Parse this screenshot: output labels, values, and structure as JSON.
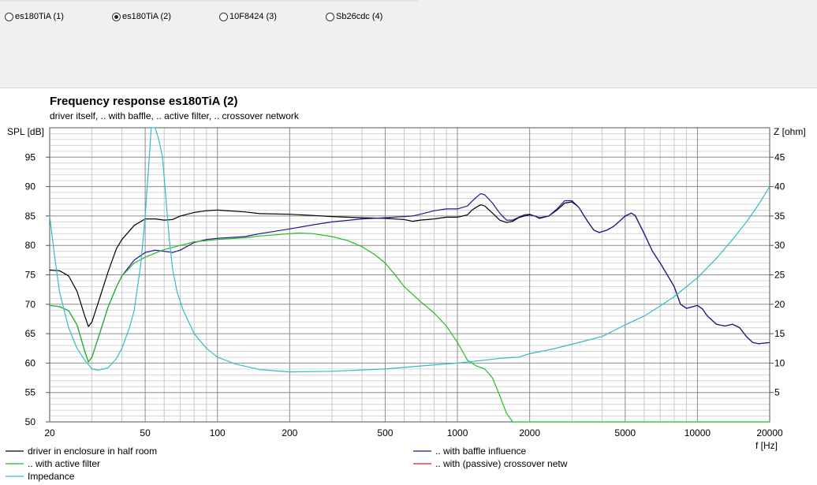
{
  "selector": {
    "options": [
      {
        "label": "es180TiA (1)",
        "selected": false
      },
      {
        "label": "es180TiA (2)",
        "selected": true
      },
      {
        "label": "10F8424 (3)",
        "selected": false
      },
      {
        "label": "Sb26cdc (4)",
        "selected": false
      }
    ]
  },
  "chart_data": {
    "type": "line",
    "title": "Frequency response es180TiA (2)",
    "subtitle": "driver itself, .. with baffle, .. active filter, .. crossover network",
    "xlabel": "f [Hz]",
    "ylabel_left": "SPL [dB]",
    "ylabel_right": "Z [ohm]",
    "x_scale": "log",
    "xlim": [
      20,
      20000
    ],
    "ylim_left": [
      50,
      100
    ],
    "ylim_right": [
      0,
      50
    ],
    "grid": true,
    "legend_placement": "bottom",
    "x_ticks": [
      20,
      50,
      100,
      200,
      500,
      1000,
      2000,
      5000,
      10000,
      20000
    ],
    "x_tick_labels": [
      "20",
      "50",
      "100",
      "200",
      "500",
      "1000",
      "2000",
      "5000",
      "10000",
      "20000"
    ],
    "y_left_ticks": [
      50,
      55,
      60,
      65,
      70,
      75,
      80,
      85,
      90,
      95
    ],
    "y_right_ticks": [
      5,
      10,
      15,
      20,
      25,
      30,
      35,
      40,
      45
    ],
    "series": [
      {
        "name": "driver in enclosure in half room",
        "color": "#000000",
        "axis": "left",
        "points": [
          [
            20,
            75.8
          ],
          [
            22,
            75.7
          ],
          [
            24,
            74.8
          ],
          [
            26,
            72.2
          ],
          [
            28,
            68
          ],
          [
            29,
            66.2
          ],
          [
            30,
            67
          ],
          [
            32,
            70.5
          ],
          [
            35,
            75.5
          ],
          [
            38,
            79.5
          ],
          [
            40,
            81
          ],
          [
            45,
            83.4
          ],
          [
            50,
            84.5
          ],
          [
            55,
            84.5
          ],
          [
            60,
            84.3
          ],
          [
            65,
            84.4
          ],
          [
            70,
            85
          ],
          [
            80,
            85.6
          ],
          [
            90,
            85.9
          ],
          [
            100,
            86
          ],
          [
            130,
            85.7
          ],
          [
            150,
            85.4
          ],
          [
            200,
            85.3
          ],
          [
            250,
            85.1
          ],
          [
            300,
            84.9
          ],
          [
            400,
            84.7
          ],
          [
            500,
            84.6
          ],
          [
            600,
            84.4
          ],
          [
            650,
            84.1
          ],
          [
            700,
            84.3
          ],
          [
            800,
            84.5
          ],
          [
            900,
            84.8
          ],
          [
            1000,
            84.8
          ],
          [
            1100,
            85.2
          ],
          [
            1150,
            86
          ],
          [
            1200,
            86.5
          ],
          [
            1250,
            86.9
          ],
          [
            1300,
            86.7
          ],
          [
            1400,
            85.5
          ],
          [
            1500,
            84.3
          ],
          [
            1600,
            83.9
          ],
          [
            1700,
            84.1
          ],
          [
            1800,
            84.7
          ],
          [
            1900,
            85
          ],
          [
            2000,
            85.2
          ],
          [
            2100,
            85
          ],
          [
            2200,
            84.6
          ],
          [
            2400,
            85
          ],
          [
            2600,
            86
          ],
          [
            2800,
            87.2
          ],
          [
            3000,
            87.4
          ],
          [
            3200,
            86.5
          ],
          [
            3500,
            84
          ],
          [
            3700,
            82.6
          ],
          [
            3900,
            82.2
          ],
          [
            4200,
            82.6
          ],
          [
            4500,
            83.3
          ],
          [
            5000,
            85
          ],
          [
            5300,
            85.5
          ],
          [
            5500,
            85.1
          ],
          [
            6000,
            82
          ],
          [
            6500,
            79
          ],
          [
            7000,
            77
          ],
          [
            8000,
            73
          ],
          [
            8500,
            70
          ],
          [
            9000,
            69.3
          ],
          [
            10000,
            69.8
          ],
          [
            10500,
            69.2
          ],
          [
            11000,
            68
          ],
          [
            12000,
            66.6
          ],
          [
            13000,
            66.3
          ],
          [
            14000,
            66.6
          ],
          [
            15000,
            66
          ],
          [
            16000,
            64.5
          ],
          [
            17000,
            63.5
          ],
          [
            18000,
            63.3
          ],
          [
            20000,
            63.5
          ]
        ]
      },
      {
        "name": ".. with baffle influence",
        "color": "#1a1a8c",
        "axis": "left",
        "points": [
          [
            20,
            69.8
          ],
          [
            22,
            69.6
          ],
          [
            24,
            68.9
          ],
          [
            26,
            66.5
          ],
          [
            28,
            62
          ],
          [
            29,
            60.2
          ],
          [
            30,
            61
          ],
          [
            32,
            64.5
          ],
          [
            35,
            69.5
          ],
          [
            38,
            73
          ],
          [
            40,
            74.8
          ],
          [
            45,
            77.5
          ],
          [
            50,
            78.8
          ],
          [
            55,
            79.2
          ],
          [
            60,
            79
          ],
          [
            65,
            78.8
          ],
          [
            70,
            79.2
          ],
          [
            80,
            80.5
          ],
          [
            90,
            81
          ],
          [
            100,
            81.2
          ],
          [
            130,
            81.5
          ],
          [
            150,
            82
          ],
          [
            200,
            82.8
          ],
          [
            250,
            83.5
          ],
          [
            300,
            84
          ],
          [
            400,
            84.5
          ],
          [
            500,
            84.7
          ],
          [
            600,
            84.9
          ],
          [
            650,
            85
          ],
          [
            700,
            85.3
          ],
          [
            800,
            85.9
          ],
          [
            900,
            86.2
          ],
          [
            1000,
            86.2
          ],
          [
            1100,
            86.7
          ],
          [
            1150,
            87.5
          ],
          [
            1200,
            88.2
          ],
          [
            1250,
            88.8
          ],
          [
            1300,
            88.6
          ],
          [
            1400,
            87.2
          ],
          [
            1500,
            85.5
          ],
          [
            1600,
            84.3
          ],
          [
            1700,
            84.3
          ],
          [
            1800,
            84.8
          ],
          [
            1900,
            85.2
          ],
          [
            2000,
            85.3
          ],
          [
            2100,
            85
          ],
          [
            2200,
            84.7
          ],
          [
            2400,
            85
          ],
          [
            2600,
            86.2
          ],
          [
            2800,
            87.6
          ],
          [
            3000,
            87.6
          ],
          [
            3200,
            86.5
          ],
          [
            3500,
            84
          ],
          [
            3700,
            82.6
          ],
          [
            3900,
            82.2
          ],
          [
            4200,
            82.6
          ],
          [
            4500,
            83.3
          ],
          [
            5000,
            85
          ],
          [
            5300,
            85.5
          ],
          [
            5500,
            85.1
          ],
          [
            6000,
            82
          ],
          [
            6500,
            79
          ],
          [
            7000,
            77
          ],
          [
            8000,
            73
          ],
          [
            8500,
            70
          ],
          [
            9000,
            69.3
          ],
          [
            10000,
            69.8
          ],
          [
            10500,
            69.2
          ],
          [
            11000,
            68
          ],
          [
            12000,
            66.6
          ],
          [
            13000,
            66.3
          ],
          [
            14000,
            66.6
          ],
          [
            15000,
            66
          ],
          [
            16000,
            64.5
          ],
          [
            17000,
            63.5
          ],
          [
            18000,
            63.3
          ],
          [
            20000,
            63.5
          ]
        ]
      },
      {
        "name": ".. with active filter",
        "color": "#22bb22",
        "axis": "left",
        "points": [
          [
            20,
            69.8
          ],
          [
            22,
            69.6
          ],
          [
            24,
            68.9
          ],
          [
            26,
            66.5
          ],
          [
            28,
            62
          ],
          [
            29,
            60.2
          ],
          [
            30,
            61
          ],
          [
            32,
            64.5
          ],
          [
            35,
            69.5
          ],
          [
            38,
            73
          ],
          [
            40,
            74.8
          ],
          [
            45,
            77
          ],
          [
            50,
            78
          ],
          [
            60,
            79.3
          ],
          [
            70,
            80
          ],
          [
            80,
            80.6
          ],
          [
            100,
            81
          ],
          [
            130,
            81.3
          ],
          [
            150,
            81.6
          ],
          [
            200,
            82
          ],
          [
            220,
            82.1
          ],
          [
            250,
            82
          ],
          [
            300,
            81.5
          ],
          [
            350,
            80.8
          ],
          [
            400,
            79.8
          ],
          [
            450,
            78.5
          ],
          [
            500,
            77
          ],
          [
            550,
            75
          ],
          [
            600,
            73
          ],
          [
            700,
            70.5
          ],
          [
            800,
            68.5
          ],
          [
            900,
            66.3
          ],
          [
            1000,
            63.5
          ],
          [
            1050,
            62
          ],
          [
            1100,
            60.5
          ],
          [
            1200,
            59.5
          ],
          [
            1300,
            59
          ],
          [
            1400,
            57.5
          ],
          [
            1500,
            54.5
          ],
          [
            1600,
            51.5
          ],
          [
            1700,
            50
          ],
          [
            20000,
            50
          ]
        ]
      },
      {
        "name": ".. with (passive) crossover netw",
        "color": "#dd2222",
        "axis": "left",
        "points": []
      },
      {
        "name": "Impedance",
        "color": "#33bbcc",
        "axis": "right",
        "points": [
          [
            20,
            35
          ],
          [
            21,
            28
          ],
          [
            22,
            22
          ],
          [
            24,
            16
          ],
          [
            26,
            12.5
          ],
          [
            28,
            10.5
          ],
          [
            30,
            9
          ],
          [
            32,
            8.8
          ],
          [
            35,
            9.2
          ],
          [
            38,
            10.8
          ],
          [
            40,
            12.5
          ],
          [
            43,
            16
          ],
          [
            45,
            19
          ],
          [
            48,
            27
          ],
          [
            50,
            35
          ],
          [
            52,
            45
          ],
          [
            53,
            50
          ],
          [
            55,
            50
          ],
          [
            57,
            48
          ],
          [
            59,
            45
          ],
          [
            61,
            38
          ],
          [
            63,
            31
          ],
          [
            65,
            26
          ],
          [
            68,
            22
          ],
          [
            72,
            19
          ],
          [
            80,
            15
          ],
          [
            90,
            12.5
          ],
          [
            100,
            11
          ],
          [
            120,
            9.8
          ],
          [
            150,
            8.9
          ],
          [
            200,
            8.5
          ],
          [
            300,
            8.6
          ],
          [
            500,
            9
          ],
          [
            700,
            9.5
          ],
          [
            1000,
            10
          ],
          [
            1300,
            10.5
          ],
          [
            1500,
            10.8
          ],
          [
            1800,
            11
          ],
          [
            2000,
            11.6
          ],
          [
            2500,
            12.4
          ],
          [
            3000,
            13.2
          ],
          [
            4000,
            14.5
          ],
          [
            5000,
            16.5
          ],
          [
            6000,
            18
          ],
          [
            7000,
            19.7
          ],
          [
            8000,
            21.3
          ],
          [
            10000,
            24.5
          ],
          [
            12000,
            27.8
          ],
          [
            14000,
            31
          ],
          [
            16000,
            34
          ],
          [
            18000,
            37
          ],
          [
            20000,
            40
          ]
        ]
      }
    ]
  }
}
